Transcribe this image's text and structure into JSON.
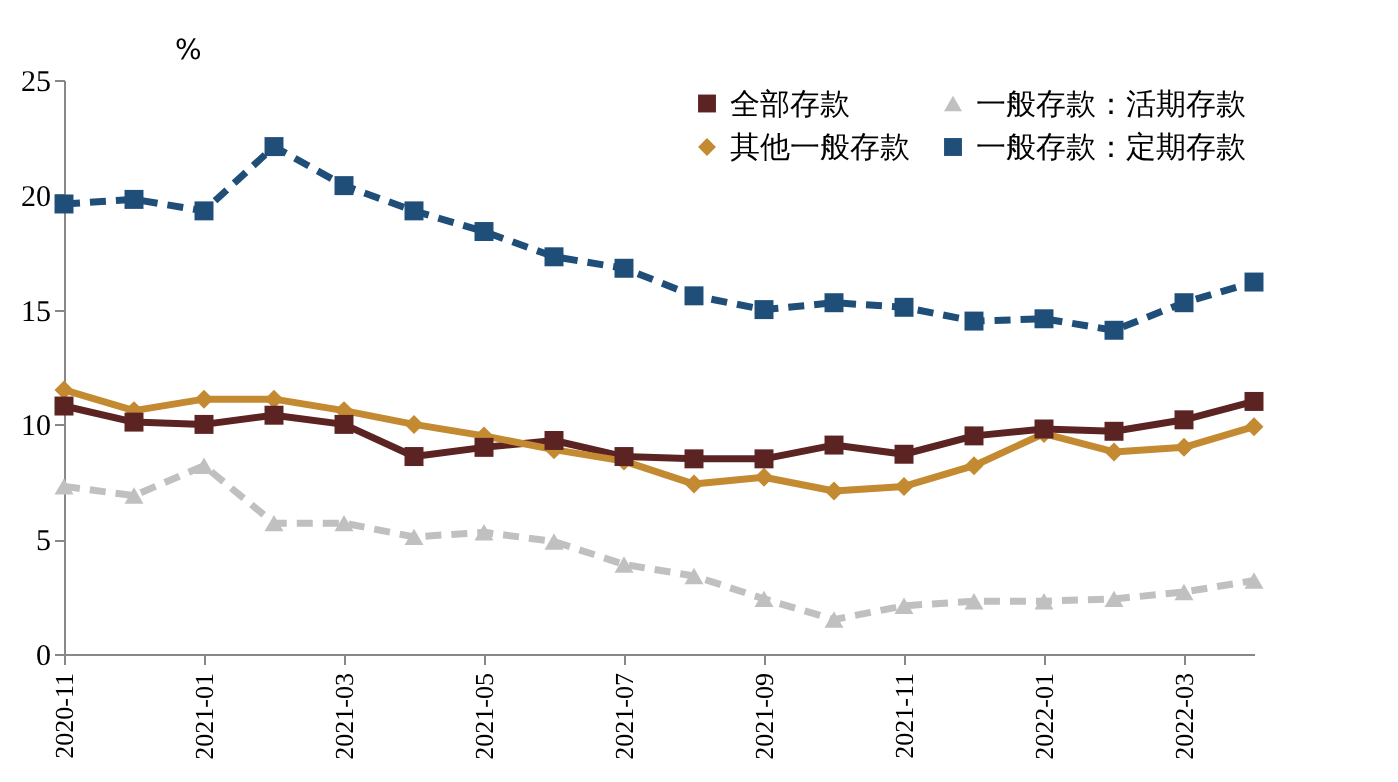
{
  "chart_data": {
    "type": "line",
    "ylabel": "%",
    "categories": [
      "2020-11",
      null,
      "2021-01",
      null,
      "2021-03",
      null,
      "2021-05",
      null,
      "2021-07",
      null,
      "2021-09",
      null,
      "2021-11",
      null,
      "2022-01",
      null,
      "2022-03",
      null
    ],
    "series": [
      {
        "name": "全部存款",
        "color": "#5c2323",
        "marker": "square",
        "line_style": "solid",
        "values": [
          10.8,
          10.1,
          10.0,
          10.4,
          10.0,
          8.6,
          9.0,
          9.3,
          8.6,
          8.5,
          8.5,
          9.1,
          8.7,
          9.5,
          9.8,
          9.7,
          10.2,
          11.0
        ]
      },
      {
        "name": "其他一般存款",
        "color": "#c48a32",
        "marker": "diamond",
        "line_style": "solid",
        "values": [
          11.5,
          10.6,
          11.1,
          11.1,
          10.6,
          10.0,
          9.5,
          8.9,
          8.4,
          7.4,
          7.7,
          7.1,
          7.3,
          8.2,
          9.6,
          8.8,
          9.0,
          9.9
        ]
      },
      {
        "name": "一般存款：活期存款",
        "color": "#c0c0c0",
        "marker": "triangle",
        "line_style": "dashed",
        "values": [
          7.3,
          6.9,
          8.2,
          5.7,
          5.7,
          5.1,
          5.3,
          4.9,
          3.9,
          3.4,
          2.4,
          1.5,
          2.1,
          2.3,
          2.3,
          2.4,
          2.7,
          3.2
        ]
      },
      {
        "name": "一般存款：定期存款",
        "color": "#1f4e79",
        "marker": "square",
        "line_style": "dashed",
        "values": [
          19.6,
          19.8,
          19.3,
          22.1,
          20.4,
          19.3,
          18.4,
          17.3,
          16.8,
          15.6,
          15.0,
          15.3,
          15.1,
          14.5,
          14.6,
          14.1,
          15.3,
          16.2
        ]
      }
    ],
    "ylim": [
      0,
      25
    ],
    "yticks": [
      0,
      5,
      10,
      15,
      20,
      25
    ],
    "grid": false,
    "legend": "top right"
  }
}
